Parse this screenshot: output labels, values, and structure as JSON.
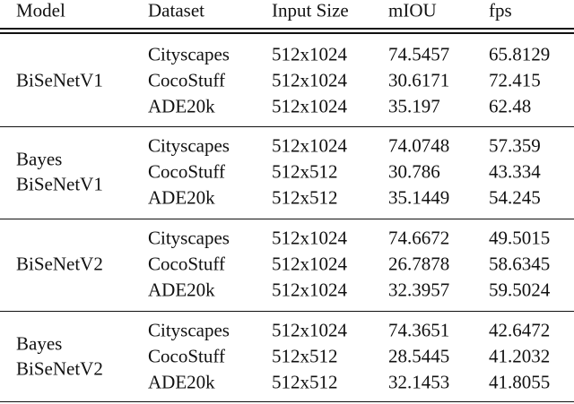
{
  "table": {
    "header": [
      "Model",
      "Dataset",
      "Input Size",
      "mIOU",
      "fps"
    ],
    "groups": [
      {
        "model": [
          "BiSeNetV1"
        ],
        "rows": [
          [
            "Cityscapes",
            "512x1024",
            "74.5457",
            "65.8129"
          ],
          [
            "CocoStuff",
            "512x1024",
            "30.6171",
            "72.415"
          ],
          [
            "ADE20k",
            "512x1024",
            "35.197",
            "62.48"
          ]
        ]
      },
      {
        "model": [
          "Bayes",
          "BiSeNetV1"
        ],
        "rows": [
          [
            "Cityscapes",
            "512x1024",
            "74.0748",
            "57.359"
          ],
          [
            "CocoStuff",
            "512x512",
            "30.786",
            "43.334"
          ],
          [
            "ADE20k",
            "512x512",
            "35.1449",
            "54.245"
          ]
        ]
      },
      {
        "model": [
          "BiSeNetV2"
        ],
        "rows": [
          [
            "Cityscapes",
            "512x1024",
            "74.6672",
            "49.5015"
          ],
          [
            "CocoStuff",
            "512x1024",
            "26.7878",
            "58.6345"
          ],
          [
            "ADE20k",
            "512x1024",
            "32.3957",
            "59.5024"
          ]
        ]
      },
      {
        "model": [
          "Bayes",
          "BiSeNetV2"
        ],
        "rows": [
          [
            "Cityscapes",
            "512x1024",
            "74.3651",
            "42.6472"
          ],
          [
            "CocoStuff",
            "512x512",
            "28.5445",
            "41.2032"
          ],
          [
            "ADE20k",
            "512x512",
            "32.1453",
            "41.8055"
          ]
        ]
      }
    ]
  }
}
